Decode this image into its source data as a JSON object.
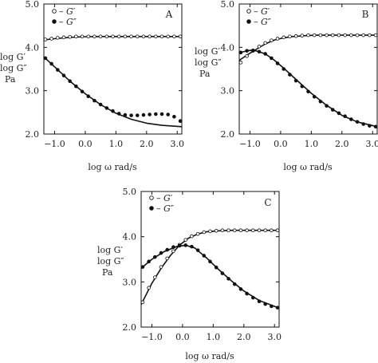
{
  "chart_data": [
    {
      "type": "scatter",
      "panel_label": "A",
      "xlabel": "log ω  rad/s",
      "ylabel": [
        "log G′",
        "log G″",
        "Pa"
      ],
      "xlim": [
        -1.35,
        3.15
      ],
      "ylim": [
        2.0,
        5.0
      ],
      "xticks": [
        "−1.0",
        "0.0",
        "1.0",
        "2.0",
        "3.0"
      ],
      "yticks": [
        "2.0",
        "3.0",
        "4.0",
        "5.0"
      ],
      "xtick_values": [
        -1,
        0,
        1,
        2,
        3
      ],
      "ytick_values": [
        2,
        3,
        4,
        5
      ],
      "legend": {
        "position": "top-left",
        "entries": [
          "– G′",
          "– G″"
        ]
      },
      "series": [
        {
          "name": "G′",
          "marker": "open-circle",
          "x": [
            -1.3,
            -1.1,
            -0.9,
            -0.7,
            -0.5,
            -0.3,
            -0.1,
            0.1,
            0.3,
            0.5,
            0.7,
            0.9,
            1.1,
            1.3,
            1.5,
            1.7,
            1.9,
            2.1,
            2.3,
            2.5,
            2.7,
            2.9,
            3.1
          ],
          "y": [
            4.18,
            4.2,
            4.22,
            4.23,
            4.24,
            4.25,
            4.25,
            4.25,
            4.25,
            4.25,
            4.25,
            4.25,
            4.25,
            4.25,
            4.25,
            4.25,
            4.25,
            4.25,
            4.25,
            4.25,
            4.25,
            4.25,
            4.25
          ],
          "fit_x": [
            -1.35,
            -1.0,
            -0.5,
            0.0,
            0.5,
            1.0,
            1.5,
            2.0,
            2.5,
            3.15
          ],
          "fit_y": [
            4.17,
            4.2,
            4.23,
            4.245,
            4.25,
            4.25,
            4.25,
            4.25,
            4.25,
            4.25
          ]
        },
        {
          "name": "G″",
          "marker": "filled-circle",
          "x": [
            -1.3,
            -1.1,
            -0.9,
            -0.7,
            -0.5,
            -0.3,
            -0.1,
            0.1,
            0.3,
            0.5,
            0.7,
            0.9,
            1.1,
            1.3,
            1.5,
            1.7,
            1.9,
            2.1,
            2.3,
            2.5,
            2.7,
            2.9,
            3.1
          ],
          "y": [
            3.75,
            3.62,
            3.48,
            3.35,
            3.22,
            3.1,
            2.98,
            2.87,
            2.77,
            2.68,
            2.6,
            2.53,
            2.47,
            2.44,
            2.43,
            2.43,
            2.44,
            2.45,
            2.46,
            2.46,
            2.45,
            2.4,
            2.3
          ],
          "fit_x": [
            -1.35,
            -1.0,
            -0.5,
            0.0,
            0.5,
            1.0,
            1.5,
            2.0,
            2.5,
            3.15
          ],
          "fit_y": [
            3.78,
            3.55,
            3.22,
            2.93,
            2.68,
            2.48,
            2.34,
            2.25,
            2.2,
            2.17
          ]
        }
      ]
    },
    {
      "type": "scatter",
      "panel_label": "B",
      "xlabel": "log ω  rad/s",
      "ylabel": [
        "log G′",
        "log G″",
        "Pa"
      ],
      "xlim": [
        -1.35,
        3.15
      ],
      "ylim": [
        2.0,
        5.0
      ],
      "xticks": [
        "−1.0",
        "0.0",
        "1.0",
        "2.0",
        "3.0"
      ],
      "yticks": [
        "2.0",
        "3.0",
        "4.0",
        "5.0"
      ],
      "xtick_values": [
        -1,
        0,
        1,
        2,
        3
      ],
      "ytick_values": [
        2,
        3,
        4,
        5
      ],
      "legend": {
        "position": "top-left",
        "entries": [
          "– G′",
          "– G″"
        ]
      },
      "series": [
        {
          "name": "G′",
          "marker": "open-circle",
          "x": [
            -1.3,
            -1.1,
            -0.9,
            -0.7,
            -0.5,
            -0.3,
            -0.1,
            0.1,
            0.3,
            0.5,
            0.7,
            0.9,
            1.1,
            1.3,
            1.5,
            1.7,
            1.9,
            2.1,
            2.3,
            2.5,
            2.7,
            2.9,
            3.1
          ],
          "y": [
            3.65,
            3.8,
            3.92,
            4.02,
            4.1,
            4.16,
            4.2,
            4.23,
            4.25,
            4.26,
            4.27,
            4.28,
            4.28,
            4.28,
            4.28,
            4.28,
            4.28,
            4.28,
            4.28,
            4.28,
            4.28,
            4.28,
            4.28
          ],
          "fit_x": [
            -1.35,
            -1.1,
            -0.8,
            -0.5,
            -0.2,
            0.1,
            0.4,
            0.8,
            1.2,
            1.6,
            2.0,
            2.5,
            3.15
          ],
          "fit_y": [
            3.7,
            3.82,
            3.95,
            4.08,
            4.17,
            4.22,
            4.25,
            4.27,
            4.28,
            4.28,
            4.28,
            4.28,
            4.28
          ]
        },
        {
          "name": "G″",
          "marker": "filled-circle",
          "x": [
            -1.3,
            -1.1,
            -0.9,
            -0.7,
            -0.5,
            -0.3,
            -0.1,
            0.1,
            0.3,
            0.5,
            0.7,
            0.9,
            1.1,
            1.3,
            1.5,
            1.7,
            1.9,
            2.1,
            2.3,
            2.5,
            2.7,
            2.9,
            3.1
          ],
          "y": [
            3.88,
            3.92,
            3.93,
            3.9,
            3.85,
            3.75,
            3.63,
            3.5,
            3.37,
            3.23,
            3.1,
            2.98,
            2.86,
            2.75,
            2.65,
            2.56,
            2.48,
            2.41,
            2.34,
            2.28,
            2.23,
            2.19,
            2.17
          ],
          "fit_x": [
            -1.35,
            -1.0,
            -0.8,
            -0.5,
            -0.2,
            0.1,
            0.5,
            1.0,
            1.5,
            2.0,
            2.5,
            3.15
          ],
          "fit_y": [
            3.88,
            3.93,
            3.92,
            3.85,
            3.7,
            3.52,
            3.26,
            2.94,
            2.66,
            2.43,
            2.28,
            2.17
          ]
        }
      ]
    },
    {
      "type": "scatter",
      "panel_label": "C",
      "xlabel": "log ω  rad/s",
      "ylabel": [
        "log G′",
        "log G″",
        "Pa"
      ],
      "xlim": [
        -1.35,
        3.15
      ],
      "ylim": [
        2.0,
        5.0
      ],
      "xticks": [
        "−1.0",
        "0.0",
        "1.0",
        "2.0",
        "3.0"
      ],
      "yticks": [
        "2.0",
        "3.0",
        "4.0",
        "5.0"
      ],
      "xtick_values": [
        -1,
        0,
        1,
        2,
        3
      ],
      "ytick_values": [
        2,
        3,
        4,
        5
      ],
      "legend": {
        "position": "top-left",
        "entries": [
          "– G′",
          "– G″"
        ]
      },
      "series": [
        {
          "name": "G′",
          "marker": "open-circle",
          "x": [
            -1.3,
            -1.1,
            -0.9,
            -0.7,
            -0.5,
            -0.3,
            -0.1,
            0.1,
            0.3,
            0.5,
            0.7,
            0.9,
            1.1,
            1.3,
            1.5,
            1.7,
            1.9,
            2.1,
            2.3,
            2.5,
            2.7,
            2.9,
            3.1
          ],
          "y": [
            2.55,
            2.87,
            3.1,
            3.33,
            3.52,
            3.68,
            3.82,
            3.93,
            4.01,
            4.06,
            4.1,
            4.12,
            4.13,
            4.14,
            4.14,
            4.14,
            4.14,
            4.14,
            4.14,
            4.14,
            4.14,
            4.14,
            4.14
          ],
          "fit_x": [
            -1.35,
            -1.0,
            -0.7,
            -0.4,
            -0.1,
            0.2,
            0.5,
            0.8,
            1.2,
            1.6,
            2.0,
            2.5,
            3.15
          ],
          "fit_y": [
            2.5,
            2.97,
            3.3,
            3.58,
            3.81,
            3.97,
            4.06,
            4.11,
            4.13,
            4.14,
            4.14,
            4.14,
            4.14
          ]
        },
        {
          "name": "G″",
          "marker": "filled-circle",
          "x": [
            -1.3,
            -1.1,
            -0.9,
            -0.7,
            -0.5,
            -0.3,
            -0.1,
            0.1,
            0.3,
            0.5,
            0.7,
            0.9,
            1.1,
            1.3,
            1.5,
            1.7,
            1.9,
            2.1,
            2.3,
            2.5,
            2.7,
            2.9,
            3.1
          ],
          "y": [
            3.33,
            3.45,
            3.55,
            3.64,
            3.71,
            3.77,
            3.8,
            3.81,
            3.78,
            3.7,
            3.58,
            3.45,
            3.32,
            3.19,
            3.07,
            2.95,
            2.84,
            2.74,
            2.65,
            2.57,
            2.51,
            2.46,
            2.43
          ],
          "fit_x": [
            -1.35,
            -1.0,
            -0.6,
            -0.2,
            0.1,
            0.4,
            0.8,
            1.2,
            1.6,
            2.0,
            2.5,
            3.15
          ],
          "fit_y": [
            3.3,
            3.5,
            3.67,
            3.78,
            3.81,
            3.75,
            3.52,
            3.26,
            3.02,
            2.8,
            2.59,
            2.42
          ]
        }
      ]
    }
  ]
}
